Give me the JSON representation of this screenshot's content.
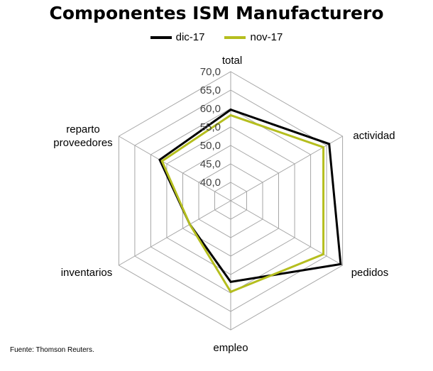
{
  "chart_data": {
    "type": "radar",
    "title": "Componentes ISM Manufacturero",
    "categories": [
      "total",
      "actividad",
      "pedidos",
      "empleo",
      "inventarios",
      "reparto proveedores"
    ],
    "axis_ticks": [
      "40,0",
      "45,0",
      "50,0",
      "55,0",
      "60,0",
      "65,0",
      "70,0"
    ],
    "rlim": [
      35,
      70
    ],
    "grid": true,
    "legend_position": "top-center",
    "series": [
      {
        "name": "dic-17",
        "color": "#000000",
        "values": [
          59.7,
          65.8,
          69.4,
          57.0,
          47.8,
          57.2
        ]
      },
      {
        "name": "nov-17",
        "color": "#b5be1e",
        "values": [
          58.2,
          64.0,
          64.0,
          59.7,
          47.8,
          56.5
        ]
      }
    ]
  },
  "source_note": "Fuente: Thomson Reuters."
}
